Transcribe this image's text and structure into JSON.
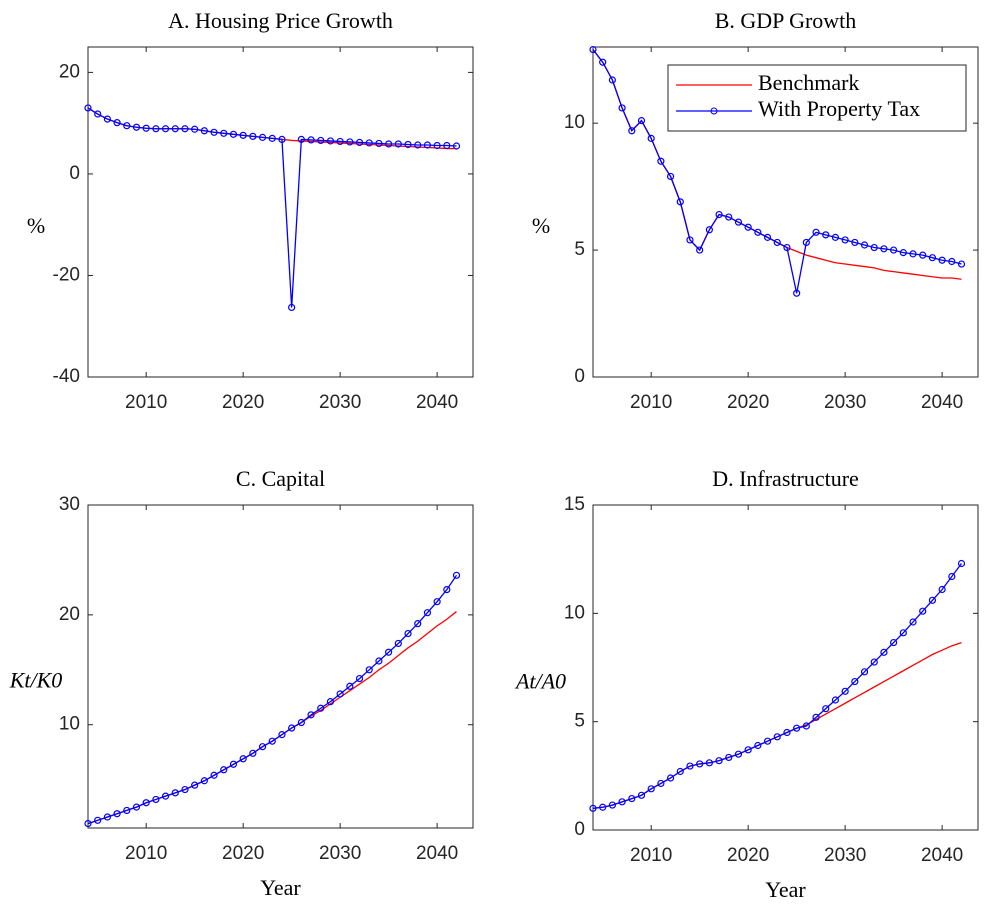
{
  "chart_data": [
    {
      "type": "line",
      "title": "A. Housing Price Growth",
      "ylabel": "%",
      "x": [
        2004,
        2005,
        2006,
        2007,
        2008,
        2009,
        2010,
        2011,
        2012,
        2013,
        2014,
        2015,
        2016,
        2017,
        2018,
        2019,
        2020,
        2021,
        2022,
        2023,
        2024,
        2025,
        2026,
        2027,
        2028,
        2029,
        2030,
        2031,
        2032,
        2033,
        2034,
        2035,
        2036,
        2037,
        2038,
        2039,
        2040,
        2041,
        2042
      ],
      "xlim": [
        2004,
        2043.7
      ],
      "xticks": [
        2010,
        2020,
        2030,
        2040
      ],
      "ylim": [
        -40,
        25
      ],
      "yticks": [
        -40,
        -20,
        0,
        20
      ],
      "series": [
        {
          "color": "#ff0000",
          "values": [
            13.0,
            11.8,
            10.8,
            10.1,
            9.5,
            9.2,
            9.0,
            8.9,
            8.9,
            8.9,
            8.9,
            8.8,
            8.5,
            8.2,
            8.0,
            7.8,
            7.6,
            7.4,
            7.2,
            7.0,
            6.8,
            6.6,
            6.5,
            6.4,
            6.3,
            6.2,
            6.1,
            6.0,
            5.9,
            5.8,
            5.7,
            5.6,
            5.5,
            5.4,
            5.3,
            5.2,
            5.1,
            5.0,
            5.0
          ]
        },
        {
          "color": "#0000ff",
          "marker": true,
          "values": [
            13.0,
            11.8,
            10.8,
            10.1,
            9.5,
            9.2,
            9.0,
            8.9,
            8.9,
            8.9,
            8.9,
            8.8,
            8.5,
            8.2,
            8.0,
            7.8,
            7.6,
            7.4,
            7.2,
            7.0,
            6.8,
            -26.3,
            6.8,
            6.7,
            6.6,
            6.5,
            6.4,
            6.3,
            6.2,
            6.1,
            6.0,
            5.9,
            5.9,
            5.8,
            5.7,
            5.7,
            5.6,
            5.6,
            5.5
          ]
        }
      ]
    },
    {
      "type": "line",
      "title": "B. GDP Growth",
      "ylabel": "%",
      "legend": "upper right",
      "x": [
        2004,
        2005,
        2006,
        2007,
        2008,
        2009,
        2010,
        2011,
        2012,
        2013,
        2014,
        2015,
        2016,
        2017,
        2018,
        2019,
        2020,
        2021,
        2022,
        2023,
        2024,
        2025,
        2026,
        2027,
        2028,
        2029,
        2030,
        2031,
        2032,
        2033,
        2034,
        2035,
        2036,
        2037,
        2038,
        2039,
        2040,
        2041,
        2042
      ],
      "xlim": [
        2004,
        2043.7
      ],
      "xticks": [
        2010,
        2020,
        2030,
        2040
      ],
      "ylim": [
        0,
        13
      ],
      "yticks": [
        0,
        5,
        10
      ],
      "series": [
        {
          "name": "Benchmark",
          "color": "#ff0000",
          "values": [
            12.9,
            12.4,
            11.7,
            10.6,
            9.7,
            10.1,
            9.4,
            8.5,
            7.9,
            6.9,
            5.4,
            5.0,
            5.8,
            6.4,
            6.3,
            6.1,
            5.9,
            5.7,
            5.5,
            5.3,
            5.1,
            4.95,
            4.8,
            4.7,
            4.6,
            4.5,
            4.45,
            4.4,
            4.35,
            4.3,
            4.2,
            4.15,
            4.1,
            4.05,
            4.0,
            3.95,
            3.9,
            3.9,
            3.85
          ]
        },
        {
          "name": "With Property Tax",
          "color": "#0000ff",
          "marker": true,
          "values": [
            12.9,
            12.4,
            11.7,
            10.6,
            9.7,
            10.1,
            9.4,
            8.5,
            7.9,
            6.9,
            5.4,
            5.0,
            5.8,
            6.4,
            6.3,
            6.1,
            5.9,
            5.7,
            5.5,
            5.3,
            5.1,
            3.3,
            5.3,
            5.7,
            5.6,
            5.5,
            5.4,
            5.3,
            5.2,
            5.1,
            5.05,
            5.0,
            4.9,
            4.85,
            4.8,
            4.7,
            4.6,
            4.55,
            4.45
          ]
        }
      ]
    },
    {
      "type": "line",
      "title": "C. Capital",
      "ylabel": "Kt/K0",
      "xlabel": "Year",
      "x": [
        2004,
        2005,
        2006,
        2007,
        2008,
        2009,
        2010,
        2011,
        2012,
        2013,
        2014,
        2015,
        2016,
        2017,
        2018,
        2019,
        2020,
        2021,
        2022,
        2023,
        2024,
        2025,
        2026,
        2027,
        2028,
        2029,
        2030,
        2031,
        2032,
        2033,
        2034,
        2035,
        2036,
        2037,
        2038,
        2039,
        2040,
        2041,
        2042
      ],
      "xlim": [
        2004,
        2043.7
      ],
      "xticks": [
        2010,
        2020,
        2030,
        2040
      ],
      "ylim": [
        0.6,
        30
      ],
      "yticks": [
        10,
        20,
        30
      ],
      "series": [
        {
          "color": "#ff0000",
          "values": [
            1.0,
            1.3,
            1.6,
            1.9,
            2.2,
            2.5,
            2.9,
            3.2,
            3.5,
            3.8,
            4.1,
            4.5,
            4.9,
            5.4,
            5.9,
            6.4,
            6.9,
            7.4,
            8.0,
            8.5,
            9.1,
            9.7,
            10.2,
            10.8,
            11.3,
            11.9,
            12.5,
            13.1,
            13.7,
            14.3,
            15.0,
            15.6,
            16.3,
            17.0,
            17.6,
            18.3,
            19.0,
            19.6,
            20.3
          ]
        },
        {
          "color": "#0000ff",
          "marker": true,
          "values": [
            1.0,
            1.3,
            1.6,
            1.9,
            2.2,
            2.5,
            2.9,
            3.2,
            3.5,
            3.8,
            4.1,
            4.5,
            4.9,
            5.4,
            5.9,
            6.4,
            6.9,
            7.4,
            8.0,
            8.5,
            9.1,
            9.7,
            10.2,
            10.9,
            11.5,
            12.1,
            12.8,
            13.5,
            14.2,
            15.0,
            15.8,
            16.6,
            17.4,
            18.3,
            19.2,
            20.2,
            21.2,
            22.3,
            23.6
          ]
        }
      ]
    },
    {
      "type": "line",
      "title": "D. Infrastructure",
      "ylabel": "At/A0",
      "xlabel": "Year",
      "x": [
        2004,
        2005,
        2006,
        2007,
        2008,
        2009,
        2010,
        2011,
        2012,
        2013,
        2014,
        2015,
        2016,
        2017,
        2018,
        2019,
        2020,
        2021,
        2022,
        2023,
        2024,
        2025,
        2026,
        2027,
        2028,
        2029,
        2030,
        2031,
        2032,
        2033,
        2034,
        2035,
        2036,
        2037,
        2038,
        2039,
        2040,
        2041,
        2042
      ],
      "xlim": [
        2004,
        2043.7
      ],
      "xticks": [
        2010,
        2020,
        2030,
        2040
      ],
      "ylim": [
        0,
        15
      ],
      "yticks": [
        0,
        5,
        10,
        15
      ],
      "series": [
        {
          "color": "#ff0000",
          "values": [
            1.0,
            1.05,
            1.15,
            1.3,
            1.45,
            1.6,
            1.9,
            2.15,
            2.4,
            2.7,
            2.95,
            3.05,
            3.1,
            3.2,
            3.35,
            3.5,
            3.7,
            3.9,
            4.1,
            4.3,
            4.5,
            4.7,
            4.85,
            5.1,
            5.35,
            5.6,
            5.85,
            6.1,
            6.35,
            6.6,
            6.85,
            7.1,
            7.35,
            7.6,
            7.85,
            8.1,
            8.3,
            8.5,
            8.65
          ]
        },
        {
          "color": "#0000ff",
          "marker": true,
          "values": [
            1.0,
            1.05,
            1.15,
            1.3,
            1.45,
            1.6,
            1.9,
            2.15,
            2.4,
            2.7,
            2.95,
            3.05,
            3.1,
            3.2,
            3.35,
            3.5,
            3.7,
            3.9,
            4.1,
            4.3,
            4.5,
            4.7,
            4.8,
            5.2,
            5.6,
            6.0,
            6.4,
            6.85,
            7.3,
            7.75,
            8.2,
            8.65,
            9.1,
            9.6,
            10.1,
            10.6,
            11.1,
            11.7,
            12.3
          ]
        }
      ]
    }
  ]
}
